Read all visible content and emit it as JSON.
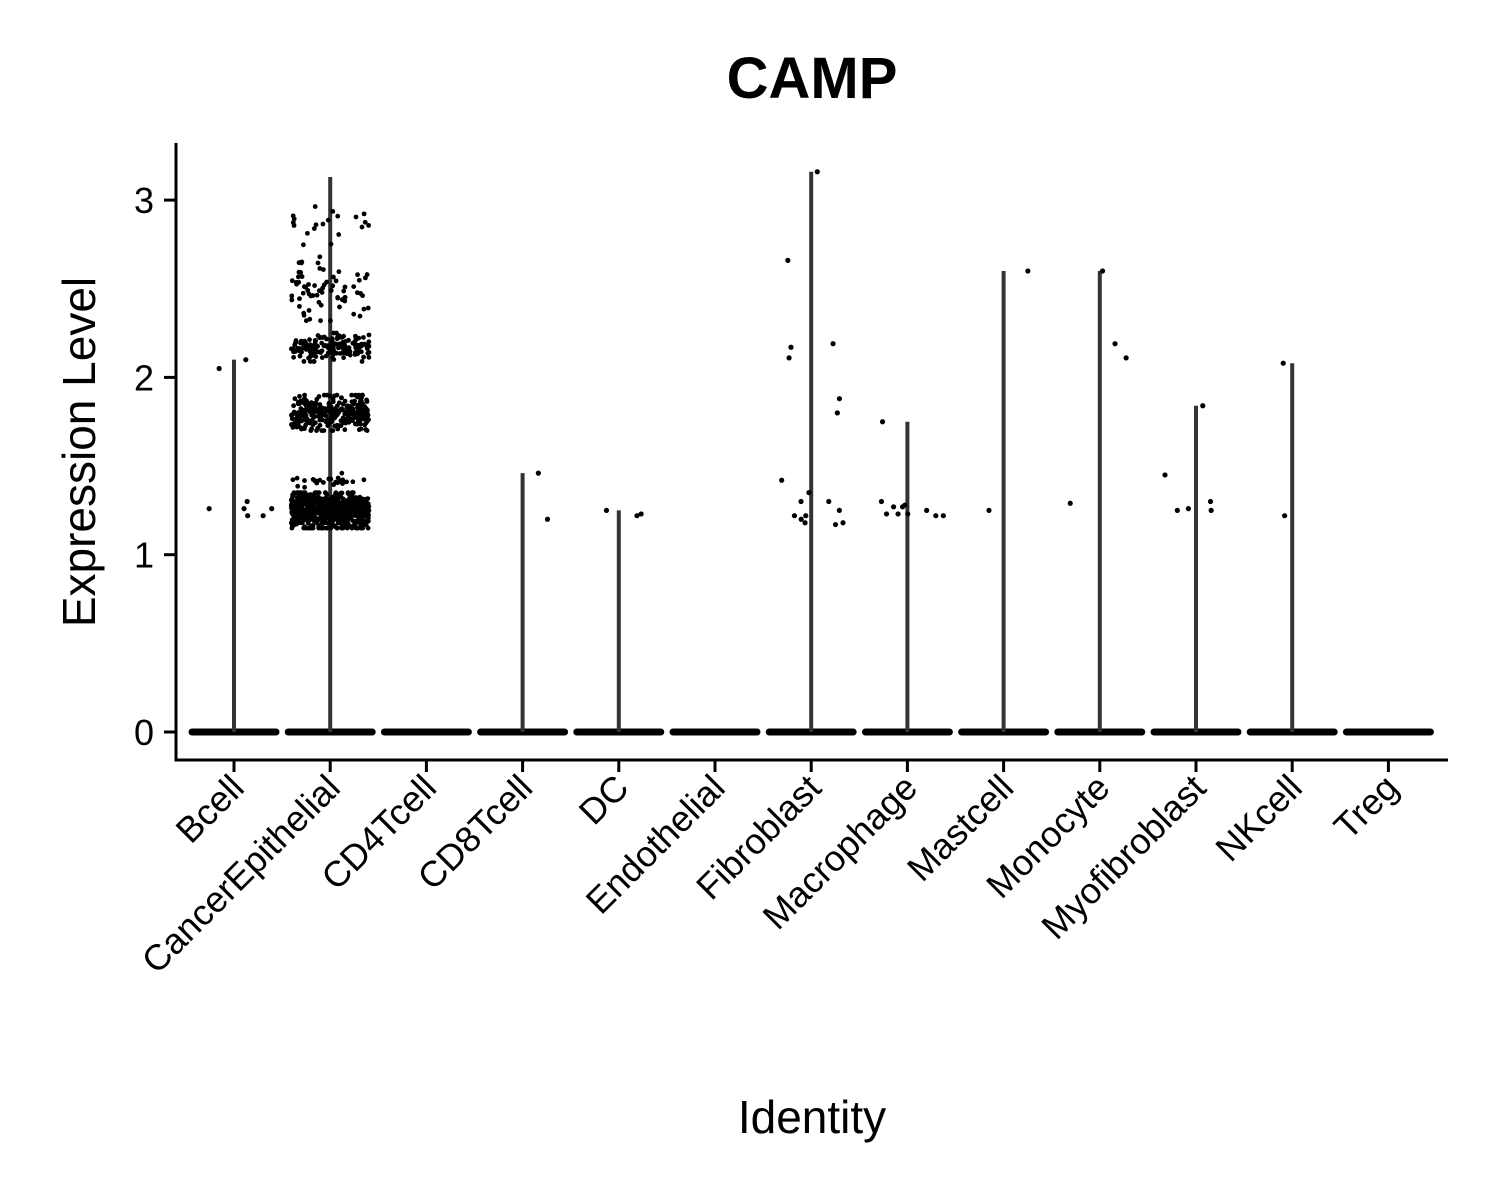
{
  "chart_data": {
    "type": "violin",
    "title": "CAMP",
    "xlabel": "Identity",
    "ylabel": "Expression Level",
    "categories": [
      "Bcell",
      "CancerEpithelial",
      "CD4Tcell",
      "CD8Tcell",
      "DC",
      "Endothelial",
      "Fibroblast",
      "Macrophage",
      "Mastcell",
      "Monocyte",
      "Myofibroblast",
      "NKcell",
      "Treg"
    ],
    "yticks": [
      0,
      1,
      2,
      3
    ],
    "ylim": [
      -0.15,
      3.33
    ],
    "max_values": [
      2.1,
      3.13,
      0,
      1.46,
      1.25,
      0,
      3.16,
      1.75,
      2.6,
      2.6,
      1.84,
      2.08,
      0
    ],
    "nonzero_points": [
      [
        2.1,
        2.05,
        1.26,
        1.26,
        1.22,
        1.3,
        1.26,
        1.22
      ],
      "dense",
      [],
      [
        1.46,
        1.2
      ],
      [
        1.22,
        1.25,
        1.23
      ],
      [],
      [
        2.66,
        3.16,
        2.17,
        2.11,
        2.19,
        1.88,
        1.8,
        1.42,
        1.35,
        1.3,
        1.3,
        1.22,
        1.2,
        1.18,
        1.25,
        1.18,
        1.22,
        1.17
      ],
      [
        1.75,
        1.3,
        1.27,
        1.23,
        1.23,
        1.22,
        1.28,
        1.25,
        1.23,
        1.27,
        1.22
      ],
      [
        2.6,
        1.25
      ],
      [
        2.6,
        2.11,
        2.19,
        1.29
      ],
      [
        1.84,
        1.45,
        1.3,
        1.26,
        1.25,
        1.25
      ],
      [
        2.08,
        1.22
      ],
      []
    ],
    "dense_clusters": [
      {
        "category": "CancerEpithelial",
        "center": 1.25,
        "spread": 0.1,
        "count": 750
      },
      {
        "category": "CancerEpithelial",
        "center": 1.8,
        "spread": 0.1,
        "count": 300
      },
      {
        "category": "CancerEpithelial",
        "center": 2.17,
        "spread": 0.08,
        "count": 160
      },
      {
        "category": "CancerEpithelial",
        "center": 2.5,
        "spread": 0.18,
        "count": 70
      },
      {
        "category": "CancerEpithelial",
        "center": 2.85,
        "spread": 0.12,
        "count": 20
      },
      {
        "category": "CancerEpithelial",
        "center": 1.42,
        "spread": 0.04,
        "count": 25
      }
    ],
    "point_color": "#000000",
    "violin_color": "#333333",
    "grid": false,
    "legend": "none"
  }
}
